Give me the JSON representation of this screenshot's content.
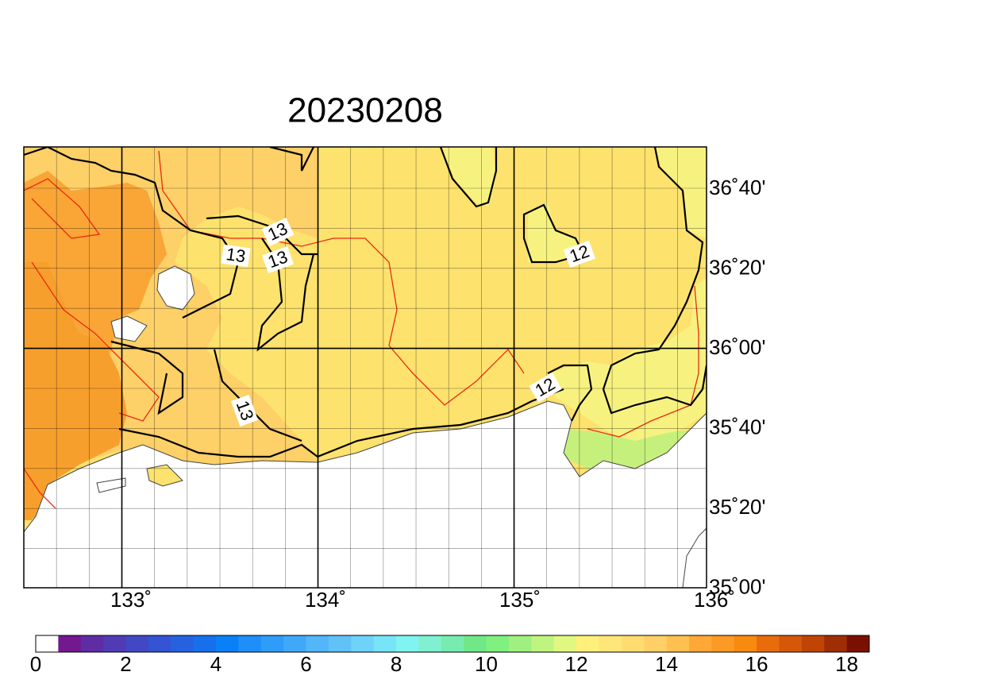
{
  "title": "20230208",
  "map": {
    "lon_labels": [
      "133˚",
      "134˚",
      "135˚",
      "136˚"
    ],
    "lat_labels": [
      "36˚40'",
      "36˚20'",
      "36˚00'",
      "35˚40'",
      "35˚20'",
      "35˚00'"
    ],
    "contour_labels": [
      "13",
      "13",
      "13",
      "13",
      "12",
      "12"
    ]
  },
  "colorbar": {
    "range": [
      0,
      18.5
    ],
    "ticks": [
      0,
      2,
      4,
      6,
      8,
      10,
      12,
      14,
      16,
      18
    ],
    "colors": [
      "#ffffff",
      "#741890",
      "#5f2ca4",
      "#4f3cb4",
      "#4248c4",
      "#3454d4",
      "#2662e0",
      "#1670ec",
      "#0a80f8",
      "#1e8ef8",
      "#2e9cf8",
      "#40a8f8",
      "#52b6f8",
      "#62c2f8",
      "#70d2f8",
      "#78e4f8",
      "#80f4f0",
      "#80f0d0",
      "#78ecb0",
      "#70e888",
      "#80f080",
      "#a0f080",
      "#c0f480",
      "#e0f880",
      "#fff07a",
      "#ffe678",
      "#ffdc70",
      "#ffd068",
      "#ffc050",
      "#ffa838",
      "#fb9a24",
      "#f88a10",
      "#e86c0c",
      "#d45808",
      "#bf4406",
      "#a02e04",
      "#7a1000"
    ]
  }
}
